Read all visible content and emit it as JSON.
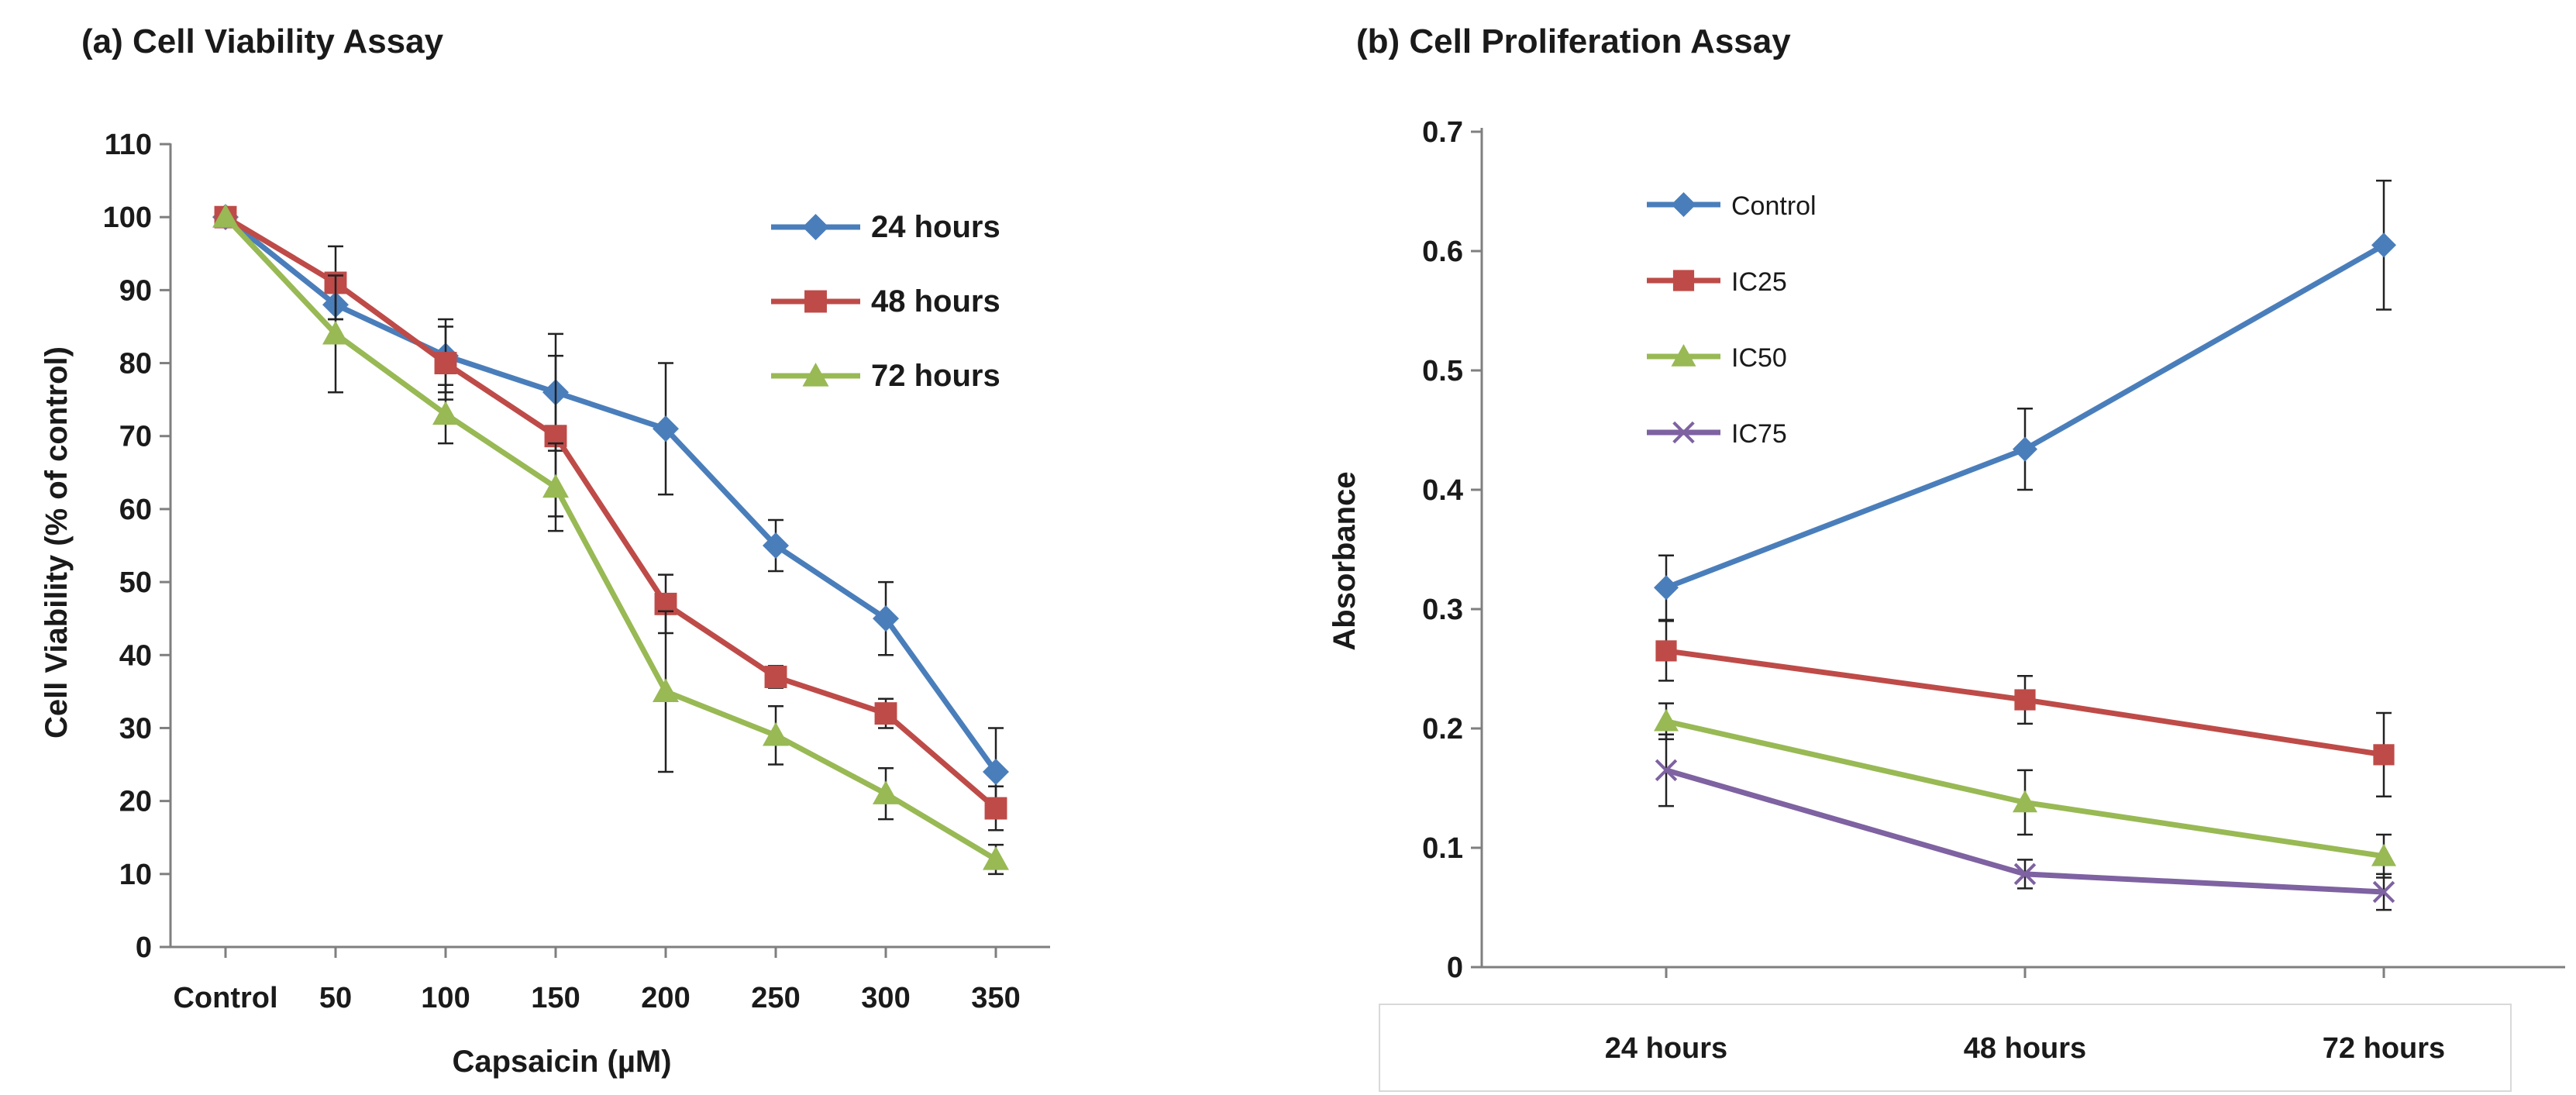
{
  "chart_data": [
    {
      "type": "line",
      "title": "(a) Cell Viability Assay",
      "xlabel": "Capsaicin (µM)",
      "ylabel": "Cell Viability (% of control)",
      "categories": [
        "Control",
        "50",
        "100",
        "150",
        "200",
        "250",
        "300",
        "350"
      ],
      "ylim": [
        0,
        110
      ],
      "yticks": [
        0,
        10,
        20,
        30,
        40,
        50,
        60,
        70,
        80,
        90,
        100,
        110
      ],
      "legend_position": "top-right",
      "legend_style": "bold",
      "series": [
        {
          "name": "24 hours",
          "color": "#4a7ebb",
          "marker": "diamond",
          "values": [
            100,
            88,
            81,
            76,
            71,
            55,
            45,
            24
          ],
          "errors": [
            0,
            2,
            5,
            8,
            9,
            3.5,
            5,
            6
          ]
        },
        {
          "name": "48 hours",
          "color": "#be4b48",
          "marker": "square",
          "values": [
            100,
            91,
            80,
            70,
            47,
            37,
            32,
            19
          ],
          "errors": [
            0,
            5,
            5,
            11,
            4,
            1.5,
            2,
            3
          ]
        },
        {
          "name": "72 hours",
          "color": "#98b954",
          "marker": "triangle",
          "values": [
            100,
            84,
            73,
            63,
            35,
            29,
            21,
            12
          ],
          "errors": [
            0,
            8,
            4,
            6,
            11,
            4,
            3.5,
            2
          ]
        }
      ]
    },
    {
      "type": "line",
      "title": "(b) Cell Proliferation Assay",
      "xlabel": "",
      "ylabel": "Absorbance",
      "categories": [
        "24 hours",
        "48 hours",
        "72 hours"
      ],
      "ylim": [
        0,
        0.7
      ],
      "yticks": [
        "0",
        "0.1",
        "0.2",
        "0.3",
        "0.4",
        "0.5",
        "0.6",
        "0.7"
      ],
      "legend_position": "top-left",
      "legend_style": "plain",
      "series": [
        {
          "name": "Control",
          "color": "#4a7ebb",
          "marker": "diamond",
          "values": [
            0.318,
            0.434,
            0.605
          ],
          "errors": [
            0.027,
            0.034,
            0.054
          ]
        },
        {
          "name": "IC25",
          "color": "#be4b48",
          "marker": "square",
          "values": [
            0.265,
            0.224,
            0.178
          ],
          "errors": [
            0.025,
            0.02,
            0.035
          ]
        },
        {
          "name": "IC50",
          "color": "#98b954",
          "marker": "triangle",
          "values": [
            0.206,
            0.138,
            0.093
          ],
          "errors": [
            0.015,
            0.027,
            0.018
          ]
        },
        {
          "name": "IC75",
          "color": "#7e62a1",
          "marker": "x",
          "values": [
            0.165,
            0.078,
            0.063
          ],
          "errors": [
            0.03,
            0.012,
            0.015
          ]
        }
      ]
    }
  ]
}
